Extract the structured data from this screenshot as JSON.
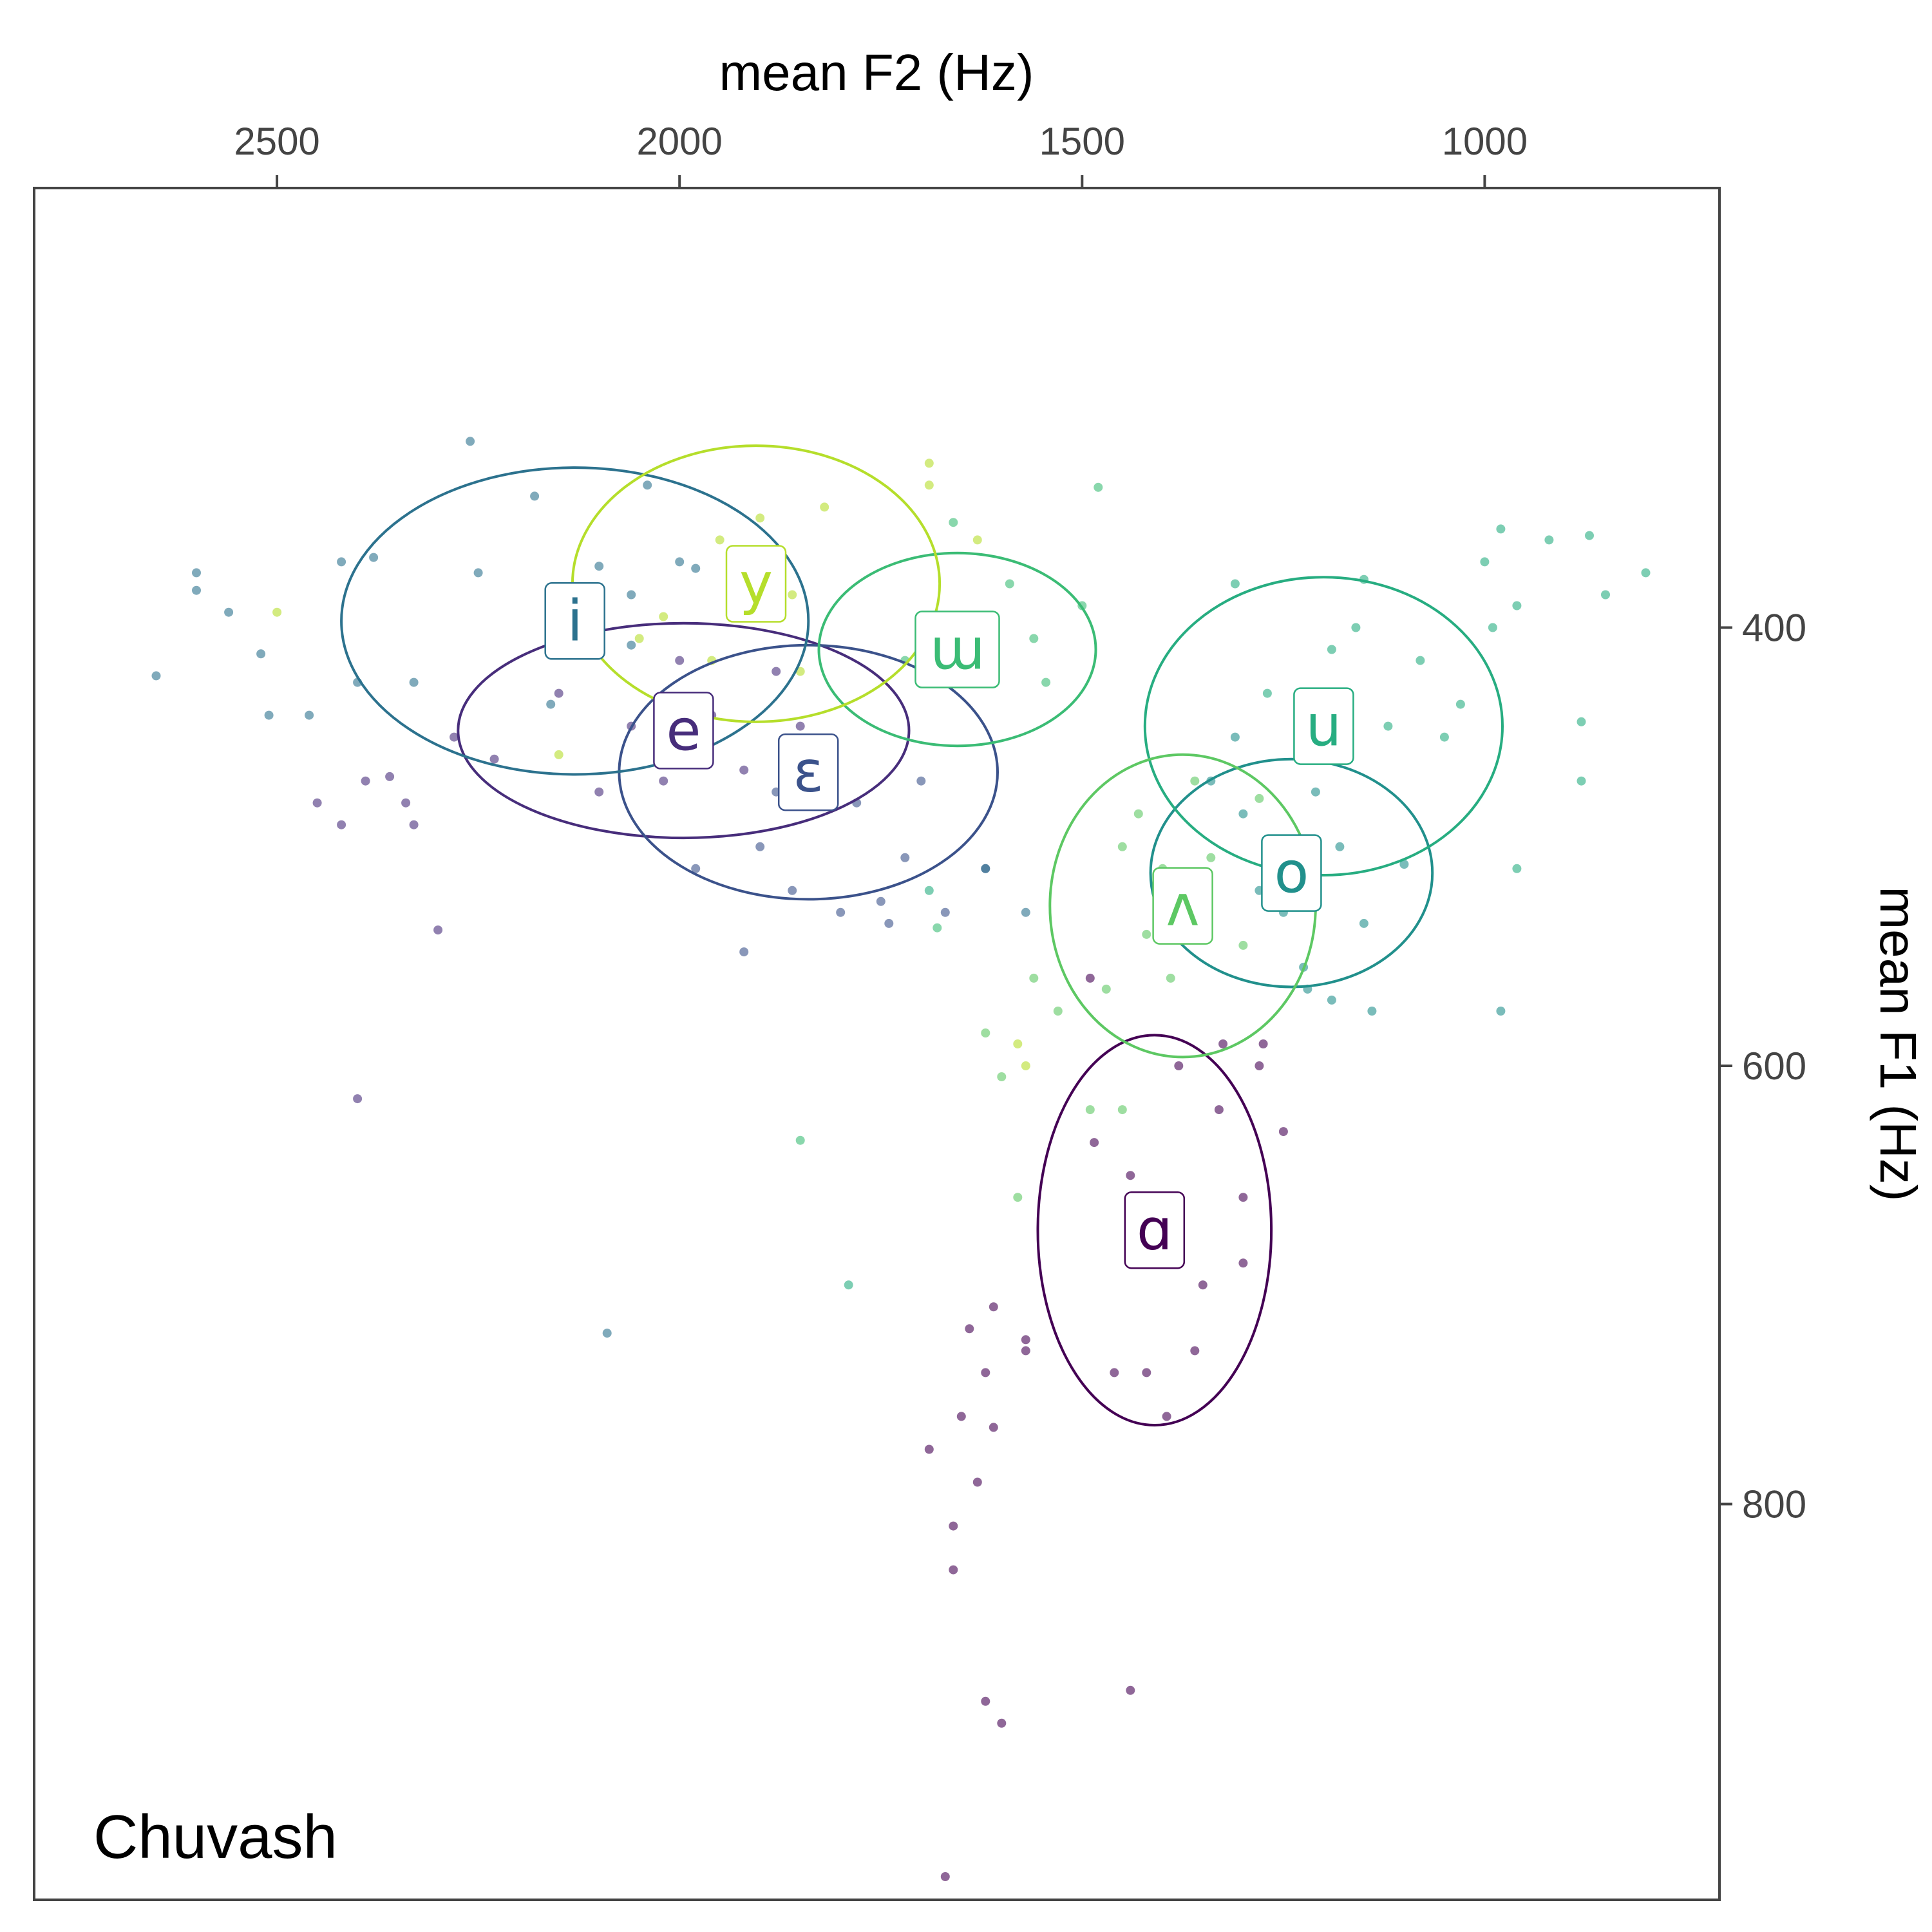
{
  "chart_data": {
    "type": "scatter",
    "title": "",
    "panel_label": "Chuvash",
    "xlabel": "mean F2 (Hz)",
    "ylabel": "mean F1 (Hz)",
    "x_axis_position": "top",
    "y_axis_position": "right",
    "x_reversed": true,
    "y_reversed": true,
    "xlim": [
      2800,
      710
    ],
    "ylim": [
      200,
      980
    ],
    "x_ticks": [
      2500,
      2000,
      1500,
      1000
    ],
    "y_ticks": [
      400,
      600,
      800
    ],
    "grid": false,
    "legend": "none",
    "series": [
      {
        "name": "ɑ",
        "color": "#440154",
        "label_pos": [
          1410,
          675
        ],
        "ellipse": {
          "center": [
            1410,
            675
          ],
          "rx": 145,
          "ry": 89
        },
        "points": [
          [
            1485,
            635
          ],
          [
            1440,
            650
          ],
          [
            1380,
            600
          ],
          [
            1350,
            700
          ],
          [
            1300,
            690
          ],
          [
            1250,
            630
          ],
          [
            1275,
            590
          ],
          [
            1300,
            660
          ],
          [
            1330,
            620
          ],
          [
            1420,
            740
          ],
          [
            1395,
            760
          ],
          [
            1490,
            560
          ],
          [
            1460,
            740
          ],
          [
            1360,
            730
          ],
          [
            1325,
            590
          ],
          [
            1280,
            600
          ]
        ]
      },
      {
        "name": "e",
        "color": "#472D7B",
        "label_pos": [
          1995,
          447
        ],
        "ellipse": {
          "center": [
            1995,
            447
          ],
          "rx": 280,
          "ry": 49
        },
        "points": [
          [
            2280,
            450
          ],
          [
            2230,
            460
          ],
          [
            2150,
            430
          ],
          [
            2100,
            475
          ],
          [
            2060,
            445
          ],
          [
            2020,
            470
          ],
          [
            2000,
            415
          ],
          [
            1960,
            440
          ],
          [
            1920,
            465
          ],
          [
            1880,
            420
          ],
          [
            1850,
            445
          ],
          [
            2360,
            468
          ],
          [
            2330,
            490
          ]
        ]
      },
      {
        "name": "ɛ",
        "color": "#3B528B",
        "label_pos": [
          1840,
          466
        ],
        "ellipse": {
          "center": [
            1840,
            466
          ],
          "rx": 235,
          "ry": 58
        },
        "points": [
          [
            1780,
            480
          ],
          [
            1700,
            470
          ],
          [
            1900,
            500
          ],
          [
            1860,
            520
          ],
          [
            1800,
            530
          ],
          [
            1720,
            505
          ],
          [
            1670,
            530
          ],
          [
            1750,
            525
          ],
          [
            1880,
            475
          ],
          [
            1980,
            510
          ],
          [
            1920,
            548
          ]
        ]
      },
      {
        "name": "i",
        "color": "#2C728E",
        "label_pos": [
          2130,
          397
        ],
        "ellipse": {
          "center": [
            2130,
            397
          ],
          "rx": 290,
          "ry": 70
        },
        "points": [
          [
            2420,
            370
          ],
          [
            2380,
            368
          ],
          [
            2250,
            375
          ],
          [
            2180,
            340
          ],
          [
            2100,
            372
          ],
          [
            2060,
            385
          ],
          [
            2040,
            335
          ],
          [
            2000,
            370
          ],
          [
            1980,
            373
          ],
          [
            2330,
            425
          ],
          [
            2400,
            425
          ],
          [
            2160,
            435
          ],
          [
            2120,
            410
          ],
          [
            2060,
            408
          ],
          [
            2460,
            440
          ],
          [
            2510,
            440
          ],
          [
            2520,
            412
          ],
          [
            2600,
            375
          ],
          [
            2600,
            383
          ],
          [
            2650,
            422
          ],
          [
            2560,
            393
          ],
          [
            2260,
            315
          ]
        ]
      },
      {
        "name": "o",
        "color": "#21908C",
        "label_pos": [
          1240,
          512
        ],
        "ellipse": {
          "center": [
            1240,
            512
          ],
          "rx": 175,
          "ry": 52
        },
        "points": [
          [
            1300,
            485
          ],
          [
            1210,
            475
          ],
          [
            1180,
            500
          ],
          [
            1150,
            535
          ],
          [
            1250,
            530
          ],
          [
            1220,
            565
          ],
          [
            1190,
            570
          ],
          [
            1140,
            575
          ],
          [
            1100,
            508
          ],
          [
            1280,
            520
          ],
          [
            1340,
            470
          ],
          [
            1310,
            450
          ],
          [
            1225,
            555
          ]
        ]
      },
      {
        "name": "u",
        "color": "#27AD81",
        "label_pos": [
          1200,
          445
        ],
        "ellipse": {
          "center": [
            1200,
            445
          ],
          "rx": 222,
          "ry": 68
        },
        "points": [
          [
            1310,
            380
          ],
          [
            1270,
            430
          ],
          [
            1230,
            445
          ],
          [
            1190,
            410
          ],
          [
            1150,
            378
          ],
          [
            1080,
            415
          ],
          [
            1030,
            435
          ],
          [
            990,
            400
          ],
          [
            960,
            390
          ],
          [
            1050,
            450
          ],
          [
            1120,
            445
          ],
          [
            1160,
            400
          ],
          [
            960,
            510
          ],
          [
            880,
            443
          ],
          [
            920,
            360
          ],
          [
            850,
            385
          ],
          [
            800,
            375
          ],
          [
            880,
            470
          ],
          [
            980,
            355
          ],
          [
            870,
            358
          ],
          [
            1000,
            370
          ]
        ]
      },
      {
        "name": "ʌ",
        "color": "#5DC863",
        "label_pos": [
          1375,
          527
        ],
        "ellipse": {
          "center": [
            1375,
            527
          ],
          "rx": 165,
          "ry": 69
        },
        "points": [
          [
            1450,
            500
          ],
          [
            1470,
            565
          ],
          [
            1420,
            540
          ],
          [
            1390,
            560
          ],
          [
            1340,
            505
          ],
          [
            1300,
            545
          ],
          [
            1280,
            478
          ],
          [
            1360,
            470
          ],
          [
            1400,
            510
          ],
          [
            1430,
            485
          ],
          [
            1560,
            560
          ],
          [
            1490,
            620
          ],
          [
            1530,
            575
          ],
          [
            1450,
            620
          ]
        ]
      },
      {
        "name": "ɯ",
        "color": "#3BBC75",
        "label_pos": [
          1655,
          410
        ],
        "ellipse": {
          "center": [
            1655,
            410
          ],
          "rx": 172,
          "ry": 44
        },
        "points": [
          [
            1700,
            395
          ],
          [
            1620,
            410
          ],
          [
            1590,
            380
          ],
          [
            1560,
            405
          ],
          [
            1500,
            390
          ],
          [
            1480,
            336
          ],
          [
            1660,
            352
          ],
          [
            1720,
            415
          ],
          [
            1545,
            425
          ],
          [
            1610,
            425
          ]
        ]
      },
      {
        "name": "y",
        "color": "#B5DE2B",
        "label_pos": [
          1905,
          380
        ],
        "ellipse": {
          "center": [
            1905,
            380
          ],
          "rx": 228,
          "ry": 63
        },
        "points": [
          [
            1950,
            360
          ],
          [
            1900,
            350
          ],
          [
            1860,
            385
          ],
          [
            1820,
            345
          ],
          [
            1690,
            335
          ],
          [
            1630,
            360
          ],
          [
            1690,
            325
          ],
          [
            1850,
            420
          ],
          [
            1960,
            415
          ],
          [
            2020,
            395
          ],
          [
            2150,
            458
          ],
          [
            2050,
            405
          ],
          [
            2500,
            393
          ]
        ]
      }
    ],
    "extra_points": [
      {
        "series": "ɑ",
        "points": [
          [
            1620,
            740
          ],
          [
            1570,
            730
          ],
          [
            1650,
            760
          ],
          [
            1610,
            765
          ],
          [
            1630,
            790
          ],
          [
            1690,
            775
          ],
          [
            1660,
            810
          ],
          [
            1660,
            830
          ],
          [
            1600,
            900
          ],
          [
            1620,
            890
          ],
          [
            1440,
            885
          ],
          [
            1670,
            970
          ],
          [
            1570,
            725
          ],
          [
            1610,
            710
          ],
          [
            1640,
            720
          ]
        ]
      },
      {
        "series": "ɛ",
        "points": [
          [
            1620,
            510
          ],
          [
            1740,
            535
          ]
        ]
      },
      {
        "series": "e",
        "points": [
          [
            2300,
            538
          ],
          [
            2400,
            615
          ],
          [
            2420,
            490
          ],
          [
            2450,
            480
          ],
          [
            2390,
            470
          ],
          [
            2340,
            480
          ]
        ]
      },
      {
        "series": "i",
        "points": [
          [
            2090,
            722
          ],
          [
            1620,
            510
          ],
          [
            1570,
            530
          ]
        ]
      },
      {
        "series": "o",
        "points": [
          [
            980,
            575
          ]
        ]
      },
      {
        "series": "u",
        "points": [
          [
            1790,
            700
          ],
          [
            1690,
            520
          ]
        ]
      },
      {
        "series": "ʌ",
        "points": [
          [
            1580,
            660
          ],
          [
            1620,
            585
          ],
          [
            1600,
            605
          ]
        ]
      },
      {
        "series": "ɯ",
        "points": [
          [
            1850,
            634
          ],
          [
            1680,
            537
          ]
        ]
      },
      {
        "series": "y",
        "points": [
          [
            1580,
            590
          ],
          [
            1570,
            600
          ]
        ]
      }
    ]
  }
}
